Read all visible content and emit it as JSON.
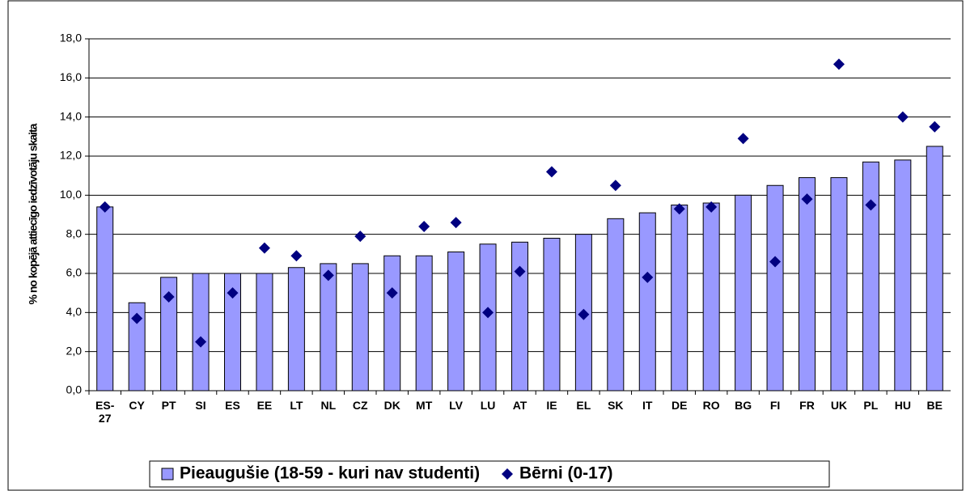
{
  "chart_data": {
    "type": "bar",
    "ylabel": "% no kopējā attiecīgo iedzīvotāju skaita",
    "categories": [
      "ES-27",
      "CY",
      "PT",
      "SI",
      "ES",
      "EE",
      "LT",
      "NL",
      "CZ",
      "DK",
      "MT",
      "LV",
      "LU",
      "AT",
      "IE",
      "EL",
      "SK",
      "IT",
      "DE",
      "RO",
      "BG",
      "FI",
      "FR",
      "UK",
      "PL",
      "HU",
      "BE"
    ],
    "series": [
      {
        "name": "Pieaugušie (18-59 - kuri nav studenti)",
        "type": "bar",
        "color": "#9999ff",
        "values": [
          9.4,
          4.5,
          5.8,
          6.0,
          6.0,
          6.0,
          6.3,
          6.5,
          6.5,
          6.9,
          6.9,
          7.1,
          7.5,
          7.6,
          7.8,
          8.0,
          8.8,
          9.1,
          9.5,
          9.6,
          10.0,
          10.5,
          10.9,
          10.9,
          11.7,
          11.8,
          12.5
        ]
      },
      {
        "name": "Bērni (0-17)",
        "type": "scatter",
        "marker": "diamond",
        "color": "#000080",
        "values": [
          9.4,
          3.7,
          4.8,
          2.5,
          5.0,
          7.3,
          6.9,
          5.9,
          7.9,
          5.0,
          8.4,
          8.6,
          4.0,
          6.1,
          11.2,
          3.9,
          10.5,
          5.8,
          9.3,
          9.4,
          12.9,
          6.6,
          9.8,
          16.7,
          9.5,
          14.0,
          13.5
        ]
      }
    ],
    "ylim": [
      0,
      18
    ],
    "yticks": [
      {
        "value": 0,
        "label": "0,0"
      },
      {
        "value": 2,
        "label": "2,0"
      },
      {
        "value": 4,
        "label": "4,0"
      },
      {
        "value": 6,
        "label": "6,0"
      },
      {
        "value": 8,
        "label": "8,0"
      },
      {
        "value": 10,
        "label": "10,0"
      },
      {
        "value": 12,
        "label": "12,0"
      },
      {
        "value": 14,
        "label": "14,0"
      },
      {
        "value": 16,
        "label": "16,0"
      },
      {
        "value": 18,
        "label": "18,0"
      }
    ],
    "grid": true,
    "legend": "bottom"
  }
}
